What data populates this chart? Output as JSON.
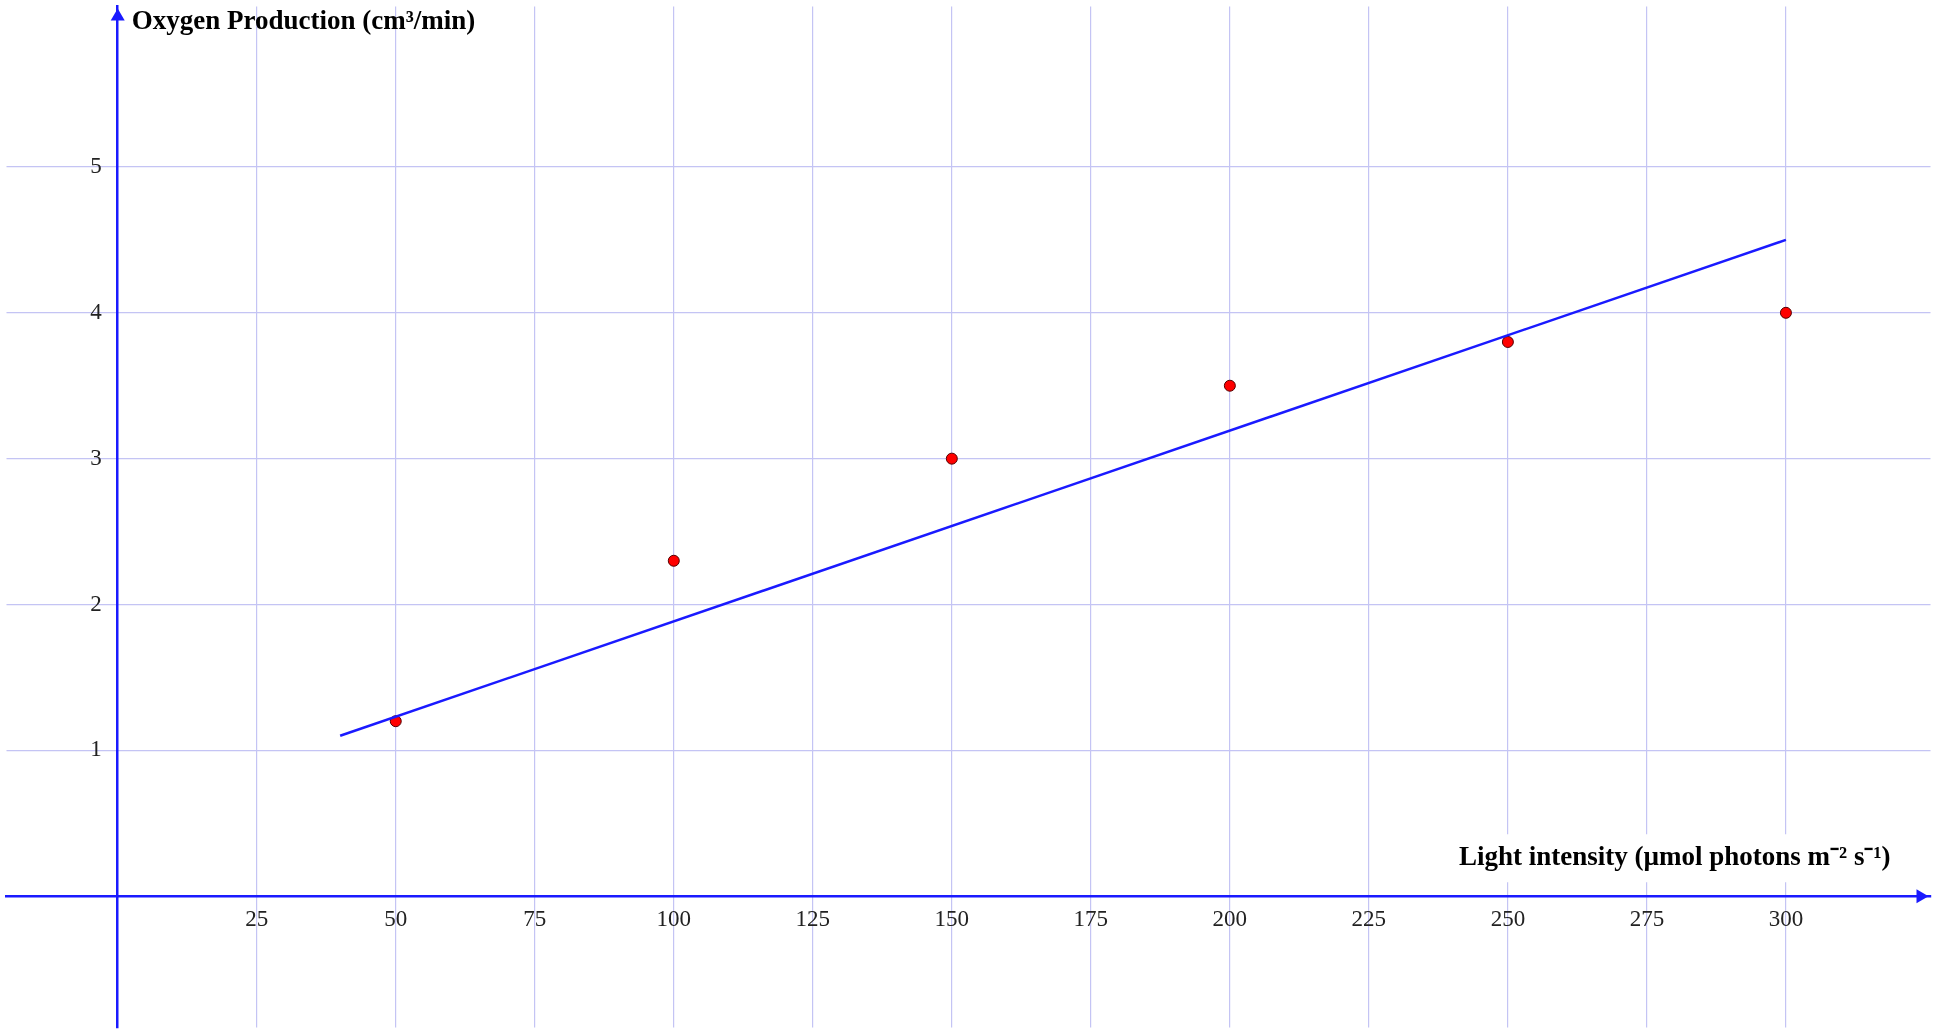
{
  "chart_data": {
    "type": "scatter",
    "xlabel": "Light intensity (µmol photons m⁻² s⁻¹)",
    "ylabel": "Oxygen Production (cm³/min)",
    "xlim": [
      -20,
      326
    ],
    "ylim": [
      -0.9,
      6.1
    ],
    "xticks": [
      25,
      50,
      75,
      100,
      125,
      150,
      175,
      200,
      225,
      250,
      275,
      300
    ],
    "yticks": [
      1,
      2,
      3,
      4,
      5
    ],
    "grid": true,
    "legend": false,
    "marker": "circle",
    "series": [
      {
        "type": "line",
        "marker": "none",
        "color": "#1a1aff",
        "x": [
          40,
          300
        ],
        "values": [
          1.1,
          4.5
        ]
      },
      {
        "type": "scatter",
        "color": "#ff0000",
        "x": [
          50,
          100,
          150,
          200,
          250,
          300
        ],
        "values": [
          1.2,
          2.3,
          3.0,
          3.5,
          3.8,
          4.0
        ]
      }
    ]
  }
}
